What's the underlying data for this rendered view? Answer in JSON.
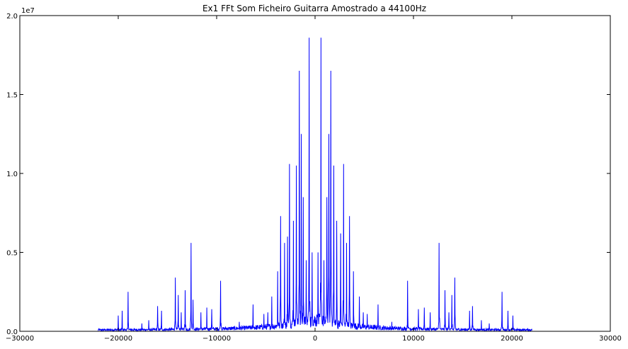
{
  "chart_data": {
    "type": "line",
    "title": "Ex1 FFt Som Ficheiro Guitarra Amostrado a 44100Hz",
    "xlabel": "",
    "ylabel": "",
    "y_scale_label": "1e7",
    "xlim": [
      -30000,
      30000
    ],
    "ylim": [
      0,
      2.0
    ],
    "x_ticks": [
      -30000,
      -20000,
      -10000,
      0,
      10000,
      20000,
      30000
    ],
    "x_tick_labels": [
      "−30000",
      "−20000",
      "−10000",
      "0",
      "10000",
      "20000",
      "30000"
    ],
    "y_ticks": [
      0.0,
      0.5,
      1.0,
      1.5,
      2.0
    ],
    "y_tick_labels": [
      "0.0",
      "0.5",
      "1.0",
      "1.5",
      "2.0"
    ],
    "grid": false,
    "series": [
      {
        "color": "#0000ff",
        "x_range": [
          -22050,
          22050
        ],
        "peaks": [
          {
            "x": -20000,
            "y": 0.1
          },
          {
            "x": -19600,
            "y": 0.13
          },
          {
            "x": -19000,
            "y": 0.25
          },
          {
            "x": -17600,
            "y": 0.05
          },
          {
            "x": -16900,
            "y": 0.07
          },
          {
            "x": -16000,
            "y": 0.16
          },
          {
            "x": -15600,
            "y": 0.13
          },
          {
            "x": -14200,
            "y": 0.34
          },
          {
            "x": -13900,
            "y": 0.23
          },
          {
            "x": -13600,
            "y": 0.12
          },
          {
            "x": -13200,
            "y": 0.26
          },
          {
            "x": -12600,
            "y": 0.56
          },
          {
            "x": -12400,
            "y": 0.2
          },
          {
            "x": -11600,
            "y": 0.12
          },
          {
            "x": -11000,
            "y": 0.15
          },
          {
            "x": -10500,
            "y": 0.14
          },
          {
            "x": -9600,
            "y": 0.32
          },
          {
            "x": -7700,
            "y": 0.06
          },
          {
            "x": -6300,
            "y": 0.17
          },
          {
            "x": -5200,
            "y": 0.11
          },
          {
            "x": -4800,
            "y": 0.12
          },
          {
            "x": -4400,
            "y": 0.22
          },
          {
            "x": -3800,
            "y": 0.38
          },
          {
            "x": -3500,
            "y": 0.73
          },
          {
            "x": -3100,
            "y": 0.56
          },
          {
            "x": -2800,
            "y": 0.6
          },
          {
            "x": -2600,
            "y": 1.06
          },
          {
            "x": -2200,
            "y": 0.7
          },
          {
            "x": -1900,
            "y": 1.05
          },
          {
            "x": -1600,
            "y": 1.65
          },
          {
            "x": -1400,
            "y": 1.25
          },
          {
            "x": -1200,
            "y": 0.85
          },
          {
            "x": -900,
            "y": 0.45
          },
          {
            "x": -600,
            "y": 1.86
          },
          {
            "x": -300,
            "y": 0.5
          },
          {
            "x": 300,
            "y": 0.5
          },
          {
            "x": 600,
            "y": 1.86
          },
          {
            "x": 900,
            "y": 0.45
          },
          {
            "x": 1200,
            "y": 0.85
          },
          {
            "x": 1400,
            "y": 1.25
          },
          {
            "x": 1600,
            "y": 1.65
          },
          {
            "x": 1900,
            "y": 1.05
          },
          {
            "x": 2200,
            "y": 0.7
          },
          {
            "x": 2600,
            "y": 0.62
          },
          {
            "x": 2900,
            "y": 1.06
          },
          {
            "x": 3200,
            "y": 0.56
          },
          {
            "x": 3500,
            "y": 0.73
          },
          {
            "x": 3900,
            "y": 0.38
          },
          {
            "x": 4500,
            "y": 0.22
          },
          {
            "x": 4900,
            "y": 0.12
          },
          {
            "x": 5300,
            "y": 0.11
          },
          {
            "x": 6400,
            "y": 0.17
          },
          {
            "x": 7800,
            "y": 0.06
          },
          {
            "x": 9400,
            "y": 0.32
          },
          {
            "x": 10500,
            "y": 0.14
          },
          {
            "x": 11100,
            "y": 0.15
          },
          {
            "x": 11700,
            "y": 0.12
          },
          {
            "x": 12600,
            "y": 0.56
          },
          {
            "x": 13200,
            "y": 0.26
          },
          {
            "x": 13600,
            "y": 0.12
          },
          {
            "x": 13900,
            "y": 0.23
          },
          {
            "x": 14200,
            "y": 0.34
          },
          {
            "x": 15700,
            "y": 0.13
          },
          {
            "x": 16000,
            "y": 0.16
          },
          {
            "x": 16900,
            "y": 0.07
          },
          {
            "x": 17700,
            "y": 0.05
          },
          {
            "x": 19000,
            "y": 0.25
          },
          {
            "x": 19600,
            "y": 0.13
          },
          {
            "x": 20100,
            "y": 0.1
          }
        ]
      }
    ]
  }
}
